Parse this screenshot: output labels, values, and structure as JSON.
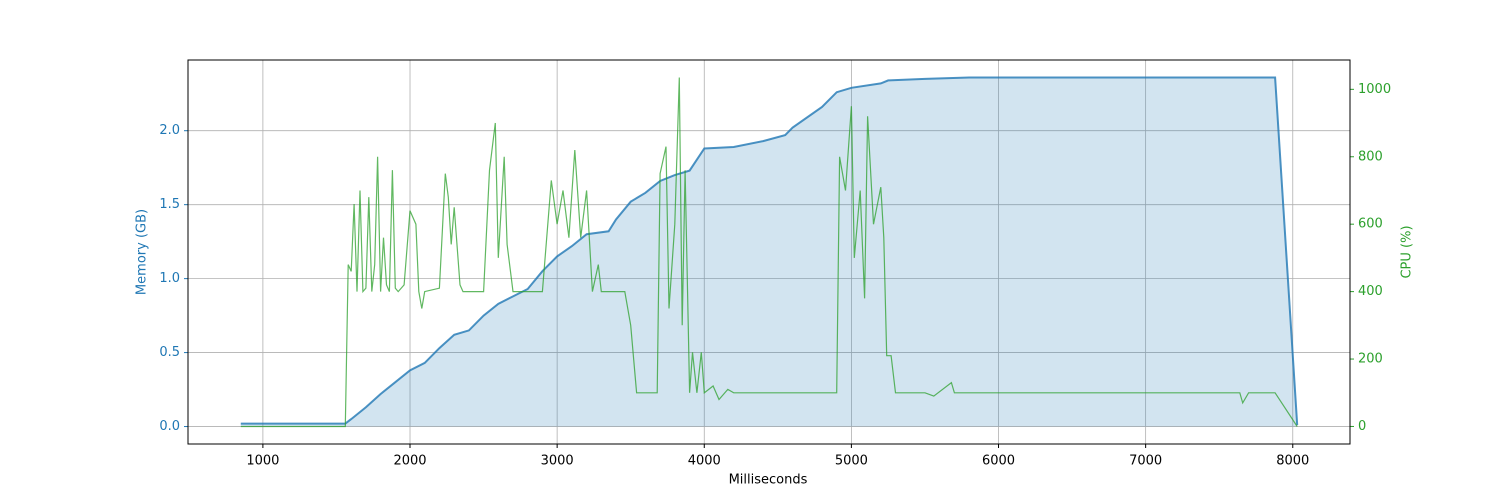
{
  "chart_data": {
    "type": "dual-line",
    "x_label": "Milliseconds",
    "xlim": [
      491,
      8389
    ],
    "xticks": [
      1000,
      2000,
      3000,
      4000,
      5000,
      6000,
      7000,
      8000
    ],
    "ylim": [
      -0.118,
      2.478
    ],
    "yticks": [
      {
        "value": 0,
        "label": "0.0"
      },
      {
        "value": 0.5,
        "label": "0.5"
      },
      {
        "value": 1,
        "label": "1.0"
      },
      {
        "value": 1.5,
        "label": "1.5"
      },
      {
        "value": 2,
        "label": "2.0"
      }
    ],
    "y_label": "Memory (GB)",
    "y2lim": [
      -52,
      1087
    ],
    "y2ticks": [
      0,
      200,
      400,
      600,
      800,
      1000
    ],
    "y2_label": "CPU (%)",
    "grid": true,
    "series": [
      {
        "name": "Memory (GB)",
        "color": "#1f77b4",
        "fill": true,
        "axis": "y",
        "x": [
          850,
          1560,
          1600,
          1700,
          1800,
          1900,
          2000,
          2100,
          2200,
          2300,
          2400,
          2500,
          2600,
          2700,
          2800,
          2900,
          3000,
          3100,
          3200,
          3350,
          3400,
          3500,
          3600,
          3700,
          3800,
          3900,
          4000,
          4200,
          4400,
          4550,
          4600,
          4800,
          4900,
          5000,
          5200,
          5250,
          5500,
          5800,
          7880,
          8030
        ],
        "values": [
          0.02,
          0.02,
          0.05,
          0.13,
          0.22,
          0.3,
          0.38,
          0.43,
          0.53,
          0.62,
          0.65,
          0.75,
          0.83,
          0.88,
          0.93,
          1.05,
          1.15,
          1.22,
          1.3,
          1.32,
          1.4,
          1.52,
          1.58,
          1.66,
          1.7,
          1.73,
          1.88,
          1.89,
          1.93,
          1.97,
          2.02,
          2.16,
          2.26,
          2.29,
          2.32,
          2.34,
          2.35,
          2.36,
          2.36,
          0.01
        ]
      },
      {
        "name": "CPU (%)",
        "color": "#2ca02c",
        "fill": false,
        "axis": "y2",
        "x": [
          850,
          1560,
          1580,
          1600,
          1620,
          1640,
          1660,
          1680,
          1700,
          1720,
          1740,
          1760,
          1780,
          1800,
          1820,
          1840,
          1860,
          1880,
          1900,
          1920,
          1960,
          2000,
          2040,
          2060,
          2080,
          2100,
          2200,
          2240,
          2260,
          2280,
          2300,
          2340,
          2360,
          2500,
          2540,
          2580,
          2600,
          2640,
          2660,
          2700,
          2800,
          2900,
          2960,
          3000,
          3040,
          3080,
          3120,
          3160,
          3200,
          3240,
          3280,
          3300,
          3400,
          3460,
          3500,
          3540,
          3680,
          3700,
          3740,
          3760,
          3800,
          3830,
          3850,
          3870,
          3900,
          3920,
          3950,
          3980,
          4000,
          4060,
          4100,
          4160,
          4200,
          4900,
          4920,
          4960,
          5000,
          5020,
          5060,
          5090,
          5110,
          5150,
          5200,
          5220,
          5240,
          5270,
          5300,
          5500,
          5560,
          5680,
          5700,
          7640,
          7660,
          7700,
          7880,
          8030
        ],
        "values": [
          0,
          0,
          480,
          460,
          660,
          400,
          700,
          400,
          410,
          680,
          400,
          480,
          800,
          400,
          560,
          420,
          400,
          760,
          410,
          400,
          420,
          640,
          600,
          400,
          350,
          400,
          410,
          750,
          680,
          540,
          650,
          420,
          400,
          400,
          760,
          900,
          500,
          800,
          540,
          400,
          400,
          400,
          730,
          600,
          700,
          560,
          820,
          560,
          700,
          400,
          480,
          400,
          400,
          400,
          300,
          100,
          100,
          750,
          830,
          350,
          600,
          1035,
          300,
          760,
          100,
          220,
          100,
          220,
          100,
          120,
          80,
          110,
          100,
          100,
          800,
          700,
          950,
          500,
          700,
          380,
          920,
          600,
          710,
          560,
          210,
          210,
          100,
          100,
          90,
          130,
          100,
          100,
          70,
          100,
          100,
          0
        ]
      }
    ]
  }
}
